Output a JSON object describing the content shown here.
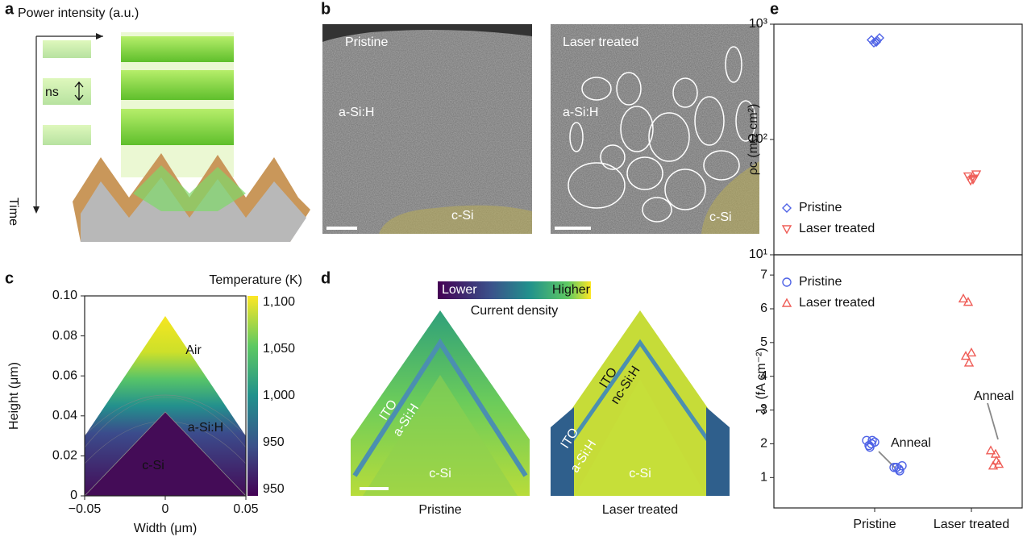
{
  "panel_labels": [
    "a",
    "b",
    "c",
    "d",
    "e"
  ],
  "panel_a": {
    "axis_label": "Power intensity (a.u.)",
    "pulse_label": "ns",
    "time_label": "Time"
  },
  "panel_b": {
    "left": {
      "title": "Pristine",
      "layer": "a-Si:H",
      "substrate": "c-Si"
    },
    "right": {
      "title": "Laser treated",
      "layer": "a-Si:H",
      "substrate": "c-Si"
    }
  },
  "panel_d": {
    "colorbar": {
      "low": "Lower",
      "high": "Higher",
      "title": "Current density"
    },
    "left": {
      "top_layer": "ITO",
      "mid_layer": "a-Si:H",
      "substrate": "c-Si",
      "caption": "Pristine"
    },
    "right": {
      "top_layer": "ITO",
      "extra_layer": "nc-Si:H",
      "side_top_layer": "ITO",
      "mid_layer": "a-Si:H",
      "substrate": "c-Si",
      "caption": "Laser treated"
    }
  },
  "chart_data": [
    {
      "type": "heatmap",
      "colorbar_title": "Temperature (K)",
      "colorbar_ticks": [
        "1,100",
        "1,050",
        "1,000",
        "950",
        "950"
      ],
      "annotations": [
        "Air",
        "a-Si:H",
        "c-Si"
      ],
      "xlabel": "Width (μm)",
      "ylabel": "Height (μm)",
      "xlim": [
        -0.05,
        0.05
      ],
      "ylim": [
        0,
        0.1
      ],
      "xticks": [
        {
          "value": -0.05,
          "label": "−0.05"
        },
        0,
        0.05
      ],
      "yticks": [
        0,
        0.02,
        0.04,
        0.06,
        0.08,
        {
          "value": 0.1,
          "label": "0.10"
        }
      ]
    },
    {
      "type": "scatter",
      "log_scale": true,
      "ylabel": "ρc (mΩ cm²)",
      "ylim": [
        10,
        1000
      ],
      "yticks": [
        {
          "value": 10,
          "label": "10¹"
        },
        {
          "value": 100,
          "label": "10²"
        },
        {
          "value": 1000,
          "label": "10³"
        }
      ],
      "legend": "lower left",
      "series": [
        {
          "name": "Pristine",
          "color": "#4f63e6",
          "marker": "diamond",
          "values": [
            730,
            700,
            760,
            690,
            720
          ]
        },
        {
          "name": "Laser treated",
          "color": "#ef5d57",
          "marker": "triangle-down",
          "values": [
            48,
            45,
            50,
            44,
            46
          ]
        }
      ]
    },
    {
      "type": "scatter",
      "ylabel": "J₀ (fA cm⁻²)",
      "categories": [
        "Pristine",
        "Laser treated"
      ],
      "ylim": [
        0.1,
        7.6
      ],
      "yticks": [
        1,
        2,
        3,
        4,
        5,
        6,
        7
      ],
      "legend": "upper left",
      "series": [
        {
          "name": "Pristine",
          "color": "#4f63e6",
          "marker": "circle",
          "annotation": "Anneal",
          "values": [
            2.1,
            2.0,
            2.05,
            1.95,
            2.1,
            1.9
          ],
          "annealed_values": [
            1.3,
            1.25,
            1.35,
            1.3,
            1.2
          ]
        },
        {
          "name": "Laser treated",
          "color": "#ef5d57",
          "marker": "triangle-up",
          "annotation": "Anneal",
          "values": [
            6.3,
            6.2,
            4.7,
            4.6,
            4.4
          ],
          "annealed_values": [
            1.8,
            1.7,
            1.4,
            1.35,
            1.5
          ]
        }
      ]
    }
  ]
}
